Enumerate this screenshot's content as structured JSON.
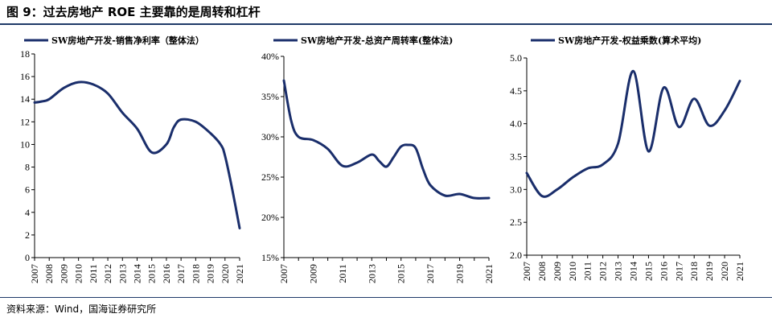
{
  "figure": {
    "title": "图 9：过去房地产 ROE 主要靠的是周转和杠杆",
    "source": "资料来源：Wind，国海证券研究所"
  },
  "style": {
    "line_color": "#1a2e6b",
    "axis_color": "#000000",
    "rule_color": "#1f3a68"
  },
  "chart_data": [
    {
      "type": "line",
      "series": [
        {
          "name": "SW房地产开发-销售净利率（整体法）",
          "x": [
            2007,
            2007.5,
            2008,
            2009,
            2010,
            2011,
            2012,
            2013,
            2014,
            2015,
            2016,
            2016.5,
            2017,
            2018,
            2019,
            2019.7,
            2020,
            2020.5,
            2021
          ],
          "values": [
            13.7,
            13.8,
            14.0,
            15.0,
            15.5,
            15.3,
            14.5,
            12.8,
            11.4,
            9.3,
            10.0,
            11.5,
            12.2,
            12.0,
            11.0,
            10.0,
            9.0,
            6.0,
            2.6
          ]
        }
      ],
      "x_ticks": [
        "2007",
        "2008",
        "2009",
        "2010",
        "2011",
        "2012",
        "2013",
        "2014",
        "2015",
        "2016",
        "2017",
        "2018",
        "2019",
        "2020",
        "2021"
      ],
      "xlim": [
        2007,
        2021
      ],
      "ylim": [
        0,
        18
      ],
      "y_ticks": [
        "0",
        "2",
        "4",
        "6",
        "8",
        "10",
        "12",
        "14",
        "16",
        "18"
      ]
    },
    {
      "type": "line",
      "series": [
        {
          "name": "SW房地产开发-总资产周转率(整体法)",
          "x": [
            2007,
            2007.5,
            2008,
            2009,
            2010,
            2011,
            2012,
            2013,
            2013.5,
            2014,
            2014.5,
            2015,
            2015.5,
            2016,
            2016.5,
            2017,
            2018,
            2019,
            2020,
            2021
          ],
          "values": [
            37.0,
            32.0,
            30.0,
            29.6,
            28.5,
            26.4,
            26.8,
            27.8,
            27.0,
            26.3,
            27.5,
            28.8,
            29.0,
            28.6,
            26.0,
            24.0,
            22.7,
            22.9,
            22.4,
            22.4
          ]
        }
      ],
      "x_ticks": [
        "2007",
        "",
        "2009",
        "",
        "2011",
        "",
        "2013",
        "",
        "2015",
        "",
        "2017",
        "",
        "2019",
        "",
        "2021"
      ],
      "xlim": [
        2007,
        2021
      ],
      "ylim": [
        15,
        40
      ],
      "y_ticks": [
        "15%",
        "20%",
        "25%",
        "30%",
        "35%",
        "40%"
      ]
    },
    {
      "type": "line",
      "series": [
        {
          "name": "SW房地产开发-权益乘数(算术平均)",
          "x": [
            2007,
            2008,
            2009,
            2010,
            2011,
            2012,
            2013,
            2014,
            2015,
            2016,
            2017,
            2018,
            2019,
            2020,
            2021
          ],
          "values": [
            3.25,
            2.9,
            3.0,
            3.18,
            3.32,
            3.38,
            3.7,
            4.8,
            3.58,
            4.55,
            3.95,
            4.38,
            3.97,
            4.2,
            4.65
          ]
        }
      ],
      "x_ticks": [
        "2007",
        "2008",
        "2009",
        "2010",
        "2011",
        "2012",
        "2013",
        "2014",
        "2015",
        "2016",
        "2017",
        "2018",
        "2019",
        "2020",
        "2021"
      ],
      "xlim": [
        2007,
        2021
      ],
      "ylim": [
        2.0,
        5.0
      ],
      "y_ticks": [
        "2.0",
        "2.5",
        "3.0",
        "3.5",
        "4.0",
        "4.5",
        "5.0"
      ]
    }
  ]
}
